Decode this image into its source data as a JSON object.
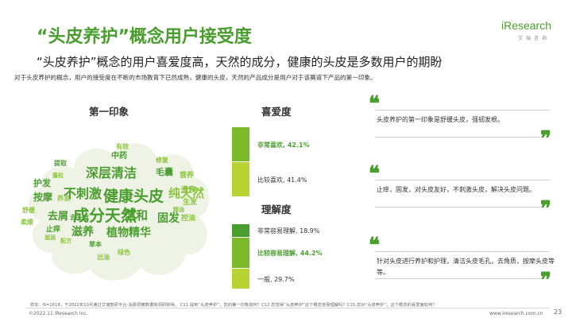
{
  "header": {
    "title": "“头皮养护”概念用户接受度",
    "logo_text": "iResearch",
    "logo_sub": "艾瑞咨询"
  },
  "subtitle": "“头皮养护”概念的用户喜爱度高，天然的成分，健康的头皮是多数用户的期盼",
  "description": "对于头皮养护的概念，用户的接受度在不断的市场教育下已然成熟，健康的头皮，天然的产品成分是用户对于该赛道下产品的第一印象。",
  "columns": {
    "first_impression": "第一印象",
    "preference": "喜爱度",
    "understanding": "理解度"
  },
  "word_cloud": {
    "words": [
      {
        "text": "成分天然",
        "size": 20,
        "color": "#4a9d2f"
      },
      {
        "text": "健康头皮",
        "size": 19,
        "color": "#4a9d2f"
      },
      {
        "text": "深层清洁",
        "size": 16,
        "color": "#4a9d2f"
      },
      {
        "text": "不刺激",
        "size": 16,
        "color": "#4a9d2f"
      },
      {
        "text": "纯天然",
        "size": 15,
        "color": "#8cc63f"
      },
      {
        "text": "植物精华",
        "size": 14,
        "color": "#4a9d2f"
      },
      {
        "text": "温和",
        "size": 15,
        "color": "#4a9d2f"
      },
      {
        "text": "固发",
        "size": 14,
        "color": "#4a9d2f"
      },
      {
        "text": "滋养",
        "size": 14,
        "color": "#4a9d2f"
      },
      {
        "text": "去屑",
        "size": 13,
        "color": "#4a9d2f"
      },
      {
        "text": "按摩",
        "size": 12,
        "color": "#4a9d2f"
      },
      {
        "text": "护发",
        "size": 11,
        "color": "#4a9d2f"
      },
      {
        "text": "毛囊",
        "size": 11,
        "color": "#4a9d2f"
      },
      {
        "text": "中药",
        "size": 10,
        "color": "#4a9d2f"
      },
      {
        "text": "营养",
        "size": 9,
        "color": "#8cc63f"
      },
      {
        "text": "清爽",
        "size": 9,
        "color": "#8cc63f"
      },
      {
        "text": "生发",
        "size": 9,
        "color": "#8cc63f"
      },
      {
        "text": "控油",
        "size": 9,
        "color": "#8cc63f"
      },
      {
        "text": "止痒",
        "size": 9,
        "color": "#4a9d2f"
      },
      {
        "text": "舒缓",
        "size": 8,
        "color": "#8cc63f"
      },
      {
        "text": "柔顺",
        "size": 8,
        "color": "#8cc63f"
      },
      {
        "text": "去头皮",
        "size": 8,
        "color": "#4a9d2f"
      },
      {
        "text": "有效",
        "size": 8,
        "color": "#8cc63f"
      },
      {
        "text": "修复",
        "size": 8,
        "color": "#8cc63f"
      },
      {
        "text": "提取",
        "size": 8,
        "color": "#4a9d2f"
      },
      {
        "text": "养发",
        "size": 8,
        "color": "#8cc63f"
      },
      {
        "text": "草本",
        "size": 8,
        "color": "#4a9d2f"
      },
      {
        "text": "绿色",
        "size": 8,
        "color": "#8cc63f"
      },
      {
        "text": "出油",
        "size": 8,
        "color": "#8cc63f"
      },
      {
        "text": "配方",
        "size": 7,
        "color": "#8cc63f"
      },
      {
        "text": "滋润",
        "size": 7,
        "color": "#8cc63f"
      },
      {
        "text": "精油",
        "size": 7,
        "color": "#8cc63f"
      },
      {
        "text": "蓬松",
        "size": 7,
        "color": "#8cc63f"
      }
    ]
  },
  "chart_data": [
    {
      "type": "bar",
      "title": "喜爱度",
      "orientation": "stacked-vertical",
      "categories": [
        "非常喜欢",
        "比较喜欢"
      ],
      "values": [
        42.1,
        41.4
      ],
      "unit": "%",
      "labels": [
        "非常喜欢, 42.1%",
        "比较喜欢, 41.4%"
      ],
      "colors": [
        "#7ab929",
        "#b7d433"
      ],
      "highlight": "非常喜欢"
    },
    {
      "type": "bar",
      "title": "理解度",
      "orientation": "stacked-vertical",
      "categories": [
        "非常容易理解",
        "比较容易理解",
        "一般"
      ],
      "values": [
        18.9,
        44.2,
        29.7
      ],
      "unit": "%",
      "labels": [
        "非常容易理解, 18.9%",
        "比较容易理解, 44.2%",
        "一般, 29.7%"
      ],
      "colors": [
        "#4a9d2f",
        "#7ab929",
        "#b7d433"
      ],
      "highlight": "比较容易理解"
    }
  ],
  "quotes": [
    {
      "text": "头皮养护的第一印象是舒缓头皮，强韧发根。"
    },
    {
      "text": "止痒，固发，对头皮友好，不刺激头皮，解决头皮问题。"
    },
    {
      "text": "针对头皮进行养护和护理，清洁头皮毛孔，去角质，按摩头皮等等。"
    }
  ],
  "quote_marks": {
    "open": "❝",
    "close": "❞"
  },
  "footer": {
    "note": "样本：N=1618，于2022年10月通过艾瑞智研平台-消费洞察数据库调研获得。 C11.提到“头皮养护”，您的第一印象如何？C12.您觉得“头皮养护”这个概念容易理解吗？C15.您对“头皮养护”，这个概念的喜爱度如何？",
    "copyright": "©2022.11 iResearch Inc.",
    "site": "www.iresearch.com.cn",
    "page": "23"
  }
}
